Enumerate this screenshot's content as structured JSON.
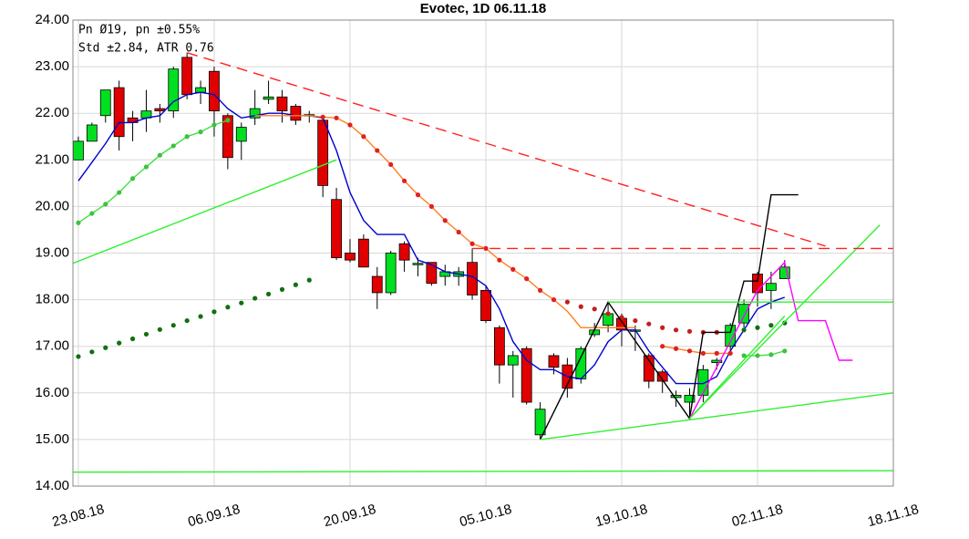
{
  "chart_data": {
    "type": "candlestick",
    "title": "Evotec, 1D 06.11.18",
    "annotations": [
      "Pn  Ø19, pn ±0.55%",
      "Std ±2.84, ATR 0.76"
    ],
    "x": [
      0,
      1,
      2,
      3,
      4,
      5,
      6,
      7,
      8,
      9,
      10,
      11,
      12,
      13,
      14,
      15,
      16,
      17,
      18,
      19,
      20,
      21,
      22,
      23,
      24,
      25,
      26,
      27,
      28,
      29,
      30,
      31,
      32,
      33,
      34,
      35,
      36,
      37,
      38,
      39,
      40,
      41,
      42,
      43,
      44,
      45,
      46,
      47,
      48,
      49,
      50,
      51,
      52
    ],
    "open": [
      21.0,
      21.4,
      21.95,
      22.55,
      21.9,
      21.9,
      22.1,
      22.05,
      23.2,
      22.45,
      22.9,
      21.95,
      21.4,
      21.9,
      22.3,
      22.35,
      22.15,
      21.95,
      21.85,
      20.15,
      19.0,
      19.3,
      18.5,
      18.15,
      19.2,
      18.75,
      18.8,
      18.5,
      18.5,
      18.8,
      18.2,
      17.4,
      16.6,
      16.95,
      15.1,
      16.8,
      16.6,
      16.3,
      17.25,
      17.45,
      17.6,
      17.35,
      16.8,
      16.45,
      15.9,
      15.8,
      15.95,
      16.65,
      17.0,
      17.5,
      18.55,
      18.2,
      18.45
    ],
    "high": [
      21.5,
      21.8,
      22.5,
      22.7,
      22.05,
      22.5,
      22.2,
      23.0,
      23.3,
      22.7,
      23.0,
      22.0,
      21.8,
      22.5,
      22.7,
      22.5,
      22.2,
      22.05,
      21.9,
      20.4,
      19.3,
      19.4,
      18.7,
      19.05,
      19.25,
      18.9,
      18.8,
      18.75,
      18.7,
      19.1,
      18.3,
      17.45,
      16.9,
      17.0,
      15.8,
      16.85,
      16.75,
      17.0,
      17.5,
      17.95,
      17.7,
      17.45,
      16.85,
      16.5,
      16.05,
      16.1,
      16.6,
      16.75,
      17.5,
      18.0,
      18.6,
      18.6,
      18.85
    ],
    "low": [
      21.0,
      21.4,
      21.8,
      21.2,
      21.4,
      21.6,
      21.8,
      21.9,
      22.3,
      22.2,
      21.5,
      20.8,
      21.0,
      21.75,
      22.2,
      21.8,
      21.75,
      21.8,
      20.2,
      18.85,
      18.8,
      18.7,
      17.8,
      18.1,
      18.6,
      18.5,
      18.3,
      18.3,
      18.3,
      18.0,
      17.5,
      16.2,
      15.9,
      15.75,
      15.0,
      16.4,
      15.9,
      16.2,
      17.2,
      17.3,
      17.0,
      16.9,
      16.1,
      16.0,
      15.7,
      15.5,
      15.8,
      16.5,
      16.85,
      17.4,
      17.85,
      17.8,
      18.45
    ],
    "close": [
      21.4,
      21.75,
      22.5,
      21.5,
      21.8,
      22.05,
      22.05,
      22.95,
      22.4,
      22.55,
      22.05,
      21.05,
      21.7,
      22.1,
      22.35,
      22.05,
      21.85,
      21.97,
      20.45,
      18.9,
      18.85,
      18.7,
      18.15,
      19.0,
      18.85,
      18.78,
      18.35,
      18.6,
      18.6,
      18.1,
      17.55,
      16.6,
      16.8,
      15.8,
      15.65,
      16.55,
      16.1,
      16.95,
      17.35,
      17.7,
      17.35,
      17.35,
      16.25,
      16.25,
      15.95,
      15.95,
      16.5,
      16.7,
      17.45,
      17.9,
      18.15,
      18.35,
      18.7
    ],
    "up_color": "#00e020",
    "down_color": "#e00000",
    "lines": [
      {
        "color": "#0000d0",
        "x": [
          0,
          1,
          2,
          3,
          4,
          5,
          6,
          7,
          8,
          9,
          10,
          11,
          12,
          13,
          14,
          15,
          16,
          17,
          18,
          19,
          20,
          21,
          22,
          23,
          24,
          25,
          26,
          27,
          28,
          29,
          30,
          31,
          32,
          33,
          34,
          35,
          36,
          37,
          38,
          39,
          40,
          41,
          42,
          43,
          44,
          45,
          46,
          47,
          48,
          49,
          50,
          51,
          52
        ],
        "values": [
          20.55,
          20.95,
          21.35,
          21.8,
          21.8,
          21.9,
          21.95,
          22.25,
          22.4,
          22.45,
          22.4,
          22.1,
          21.9,
          21.95,
          22.0,
          22.0,
          21.95,
          21.95,
          21.9,
          21.2,
          20.3,
          19.7,
          19.4,
          19.4,
          19.4,
          18.85,
          18.75,
          18.6,
          18.55,
          18.5,
          18.3,
          17.8,
          17.1,
          16.7,
          16.5,
          16.5,
          16.35,
          16.3,
          16.6,
          17.1,
          17.35,
          17.35,
          16.9,
          16.55,
          16.2,
          16.2,
          16.2,
          16.35,
          16.9,
          17.35,
          17.8,
          17.95,
          18.05
        ]
      },
      {
        "color": "#ff8020",
        "x": [
          13,
          14,
          15,
          16,
          17,
          18,
          19,
          20,
          21,
          22,
          23,
          24,
          25,
          26,
          27,
          28,
          29,
          30,
          31,
          32,
          33,
          34,
          35,
          36,
          37,
          38,
          39,
          40,
          41
        ],
        "values": [
          21.95,
          21.95,
          21.95,
          21.95,
          21.95,
          21.92,
          21.9,
          21.75,
          21.5,
          21.2,
          20.9,
          20.55,
          20.25,
          20.0,
          19.7,
          19.45,
          19.2,
          19.1,
          18.85,
          18.65,
          18.45,
          18.2,
          18.0,
          17.75,
          17.4,
          17.4,
          17.4,
          17.4,
          17.4
        ]
      },
      {
        "color": "#ff8020",
        "dots": "#e02020",
        "x": [
          43,
          44,
          45,
          46,
          47,
          48
        ],
        "values": [
          17.0,
          16.95,
          16.9,
          16.85,
          16.85,
          16.85
        ]
      },
      {
        "dots": "#e02020",
        "x": [
          18,
          19,
          20,
          21,
          22,
          23,
          24,
          25,
          26,
          27,
          28,
          29,
          30,
          31,
          32,
          33,
          34,
          35
        ],
        "values": [
          21.92,
          21.9,
          21.75,
          21.5,
          21.2,
          20.9,
          20.55,
          20.25,
          20.0,
          19.7,
          19.45,
          19.2,
          19.1,
          18.85,
          18.65,
          18.45,
          18.2,
          18.0
        ]
      },
      {
        "dots": "#c02020",
        "x": [
          36,
          37,
          38,
          39,
          40,
          41,
          42,
          43,
          44,
          45,
          46,
          47
        ],
        "values": [
          17.95,
          17.85,
          17.8,
          17.7,
          17.62,
          17.55,
          17.48,
          17.4,
          17.35,
          17.32,
          17.3,
          17.3
        ]
      },
      {
        "color": "#40e040",
        "dots": "#40c040",
        "x": [
          0,
          1,
          2,
          3,
          4,
          5,
          6,
          7,
          8,
          9,
          10,
          11
        ],
        "values": [
          19.65,
          19.85,
          20.05,
          20.3,
          20.6,
          20.85,
          21.1,
          21.3,
          21.5,
          21.6,
          21.75,
          21.85
        ]
      },
      {
        "color": "#40e040",
        "dots": "#40c040",
        "x": [
          49,
          50,
          51,
          52
        ],
        "values": [
          16.8,
          16.8,
          16.82,
          16.9
        ]
      },
      {
        "dots": "#107010",
        "x": [
          0,
          1,
          2,
          3,
          4,
          5,
          6,
          7,
          8,
          9,
          10,
          11,
          12,
          13,
          14,
          15,
          16,
          17
        ],
        "values": [
          16.78,
          16.88,
          16.97,
          17.07,
          17.16,
          17.26,
          17.36,
          17.45,
          17.55,
          17.64,
          17.74,
          17.84,
          17.93,
          18.03,
          18.12,
          18.22,
          18.32,
          18.42
        ]
      },
      {
        "dots": "#107010",
        "x": [
          49,
          50,
          51,
          52
        ],
        "values": [
          17.35,
          17.4,
          17.45,
          17.5
        ]
      },
      {
        "color": "#000000",
        "x": [
          34,
          39,
          45,
          46,
          48,
          49,
          50,
          51,
          53
        ],
        "values": [
          15.0,
          17.95,
          15.45,
          17.3,
          17.3,
          18.4,
          18.4,
          20.25,
          20.25
        ]
      },
      {
        "color": "#ff00ff",
        "x": [
          45,
          50,
          52,
          53,
          55,
          56,
          57
        ],
        "values": [
          15.45,
          18.2,
          18.8,
          17.55,
          17.55,
          16.7,
          16.7
        ]
      },
      {
        "color": "#30f030",
        "x": [
          -0.4,
          19
        ],
        "values": [
          18.78,
          21.0
        ]
      },
      {
        "color": "#30f030",
        "x": [
          -0.4,
          60
        ],
        "values": [
          14.3,
          14.33
        ]
      },
      {
        "color": "#30f030",
        "x": [
          34,
          60
        ],
        "values": [
          15.0,
          16.0
        ]
      },
      {
        "color": "#30f030",
        "x": [
          39,
          60
        ],
        "values": [
          17.95,
          17.95
        ]
      },
      {
        "color": "#30f030",
        "x": [
          45,
          59
        ],
        "values": [
          15.45,
          19.6
        ]
      },
      {
        "color": "#30f030",
        "x": [
          45,
          52
        ],
        "values": [
          15.45,
          17.65
        ]
      },
      {
        "color": "#ff2020",
        "dash": true,
        "x": [
          8,
          55
        ],
        "values": [
          23.3,
          19.15
        ]
      },
      {
        "color": "#ff2020",
        "dash": true,
        "x": [
          29,
          60
        ],
        "values": [
          19.1,
          19.1
        ]
      }
    ],
    "xlim": [
      -0.4,
      60
    ],
    "xticks": [
      {
        "value": 0,
        "label": "23.08.18"
      },
      {
        "value": 10,
        "label": "06.09.18"
      },
      {
        "value": 20,
        "label": "20.09.18"
      },
      {
        "value": 30,
        "label": "05.10.18"
      },
      {
        "value": 40,
        "label": "19.10.18"
      },
      {
        "value": 50,
        "label": "02.11.18"
      },
      {
        "value": 60,
        "label": "18.11.18"
      }
    ],
    "ylim": [
      14,
      24
    ],
    "yticks": [
      {
        "value": 14,
        "label": "14.00"
      },
      {
        "value": 15,
        "label": "15.00"
      },
      {
        "value": 16,
        "label": "16.00"
      },
      {
        "value": 17,
        "label": "17.00"
      },
      {
        "value": 18,
        "label": "18.00"
      },
      {
        "value": 19,
        "label": "19.00"
      },
      {
        "value": 20,
        "label": "20.00"
      },
      {
        "value": 21,
        "label": "21.00"
      },
      {
        "value": 22,
        "label": "22.00"
      },
      {
        "value": 23,
        "label": "23.00"
      },
      {
        "value": 24,
        "label": "24.00"
      }
    ],
    "grid": true
  }
}
